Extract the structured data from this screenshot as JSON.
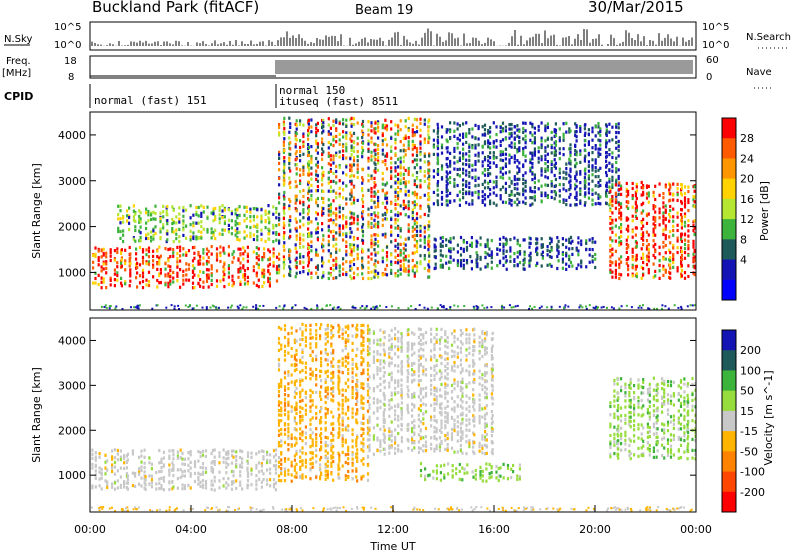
{
  "header": {
    "title": "Buckland Park (fitACF)",
    "beam": "Beam 19",
    "date": "30/Mar/2015"
  },
  "top_panels": {
    "nsky_label": "N.Sky",
    "nsearch_label": "N.Search",
    "nsky_ticks": [
      "10^5",
      "10^0"
    ],
    "nsearch_ticks": [
      "10^5",
      "10^0"
    ],
    "freq_label": "Freq.",
    "freq_unit": "[MHz]",
    "freq_ticks": [
      "18",
      "8"
    ],
    "nave_label": "Nave",
    "nave_ticks": [
      "60",
      "0"
    ],
    "cpid_label": "CPID",
    "cpid_entries": [
      "normal (fast) 151",
      "normal 150",
      "ituseq (fast) 8511"
    ]
  },
  "chart_data": [
    {
      "type": "heatmap",
      "panel": "power",
      "ylabel": "Slant Range [km]",
      "xlabel": "",
      "yticks": [
        1000,
        2000,
        3000,
        4000
      ],
      "ylim": [
        180,
        4500
      ],
      "xlim_hours": [
        0,
        24
      ],
      "colorbar": {
        "label": "Power [dB]",
        "ticks": [
          "28",
          "24",
          "20",
          "16",
          "12",
          "8",
          "4"
        ],
        "colors": [
          "#ff0000",
          "#ff5a00",
          "#ff9600",
          "#ffd200",
          "#b4e632",
          "#3cb43c",
          "#1e5a5a",
          "#1414b4",
          "#0000ff"
        ]
      },
      "regions": [
        {
          "t0": 0.0,
          "t1": 7.4,
          "r0": 700,
          "r1": 1600,
          "level": "high"
        },
        {
          "t0": 1.0,
          "t1": 7.4,
          "r0": 1700,
          "r1": 2500,
          "level": "mid"
        },
        {
          "t0": 7.4,
          "t1": 13.5,
          "r0": 900,
          "r1": 4400,
          "level": "mixed"
        },
        {
          "t0": 13.5,
          "t1": 20.0,
          "r0": 1100,
          "r1": 1800,
          "level": "low"
        },
        {
          "t0": 13.5,
          "t1": 21.0,
          "r0": 2500,
          "r1": 4300,
          "level": "low"
        },
        {
          "t0": 20.5,
          "t1": 24.0,
          "r0": 900,
          "r1": 3000,
          "level": "high"
        }
      ]
    },
    {
      "type": "heatmap",
      "panel": "velocity",
      "ylabel": "Slant Range [km]",
      "xlabel": "Time UT",
      "yticks": [
        1000,
        2000,
        3000,
        4000
      ],
      "ylim": [
        180,
        4500
      ],
      "xticks": [
        "00:00",
        "04:00",
        "08:00",
        "12:00",
        "16:00",
        "20:00",
        "00:00"
      ],
      "xlim_hours": [
        0,
        24
      ],
      "colorbar": {
        "label": "Velocity [m s^-1]",
        "ticks": [
          "200",
          "100",
          "50",
          "15",
          "-15",
          "-50",
          "-100",
          "-200"
        ],
        "colors": [
          "#1414b4",
          "#1e5a5a",
          "#3cb43c",
          "#96dc3c",
          "#c8c8c8",
          "#ffb400",
          "#ff8200",
          "#ff4600",
          "#ff0000"
        ]
      },
      "regions": [
        {
          "t0": 0.0,
          "t1": 7.4,
          "r0": 700,
          "r1": 1600,
          "level": "zero"
        },
        {
          "t0": 7.4,
          "t1": 11.0,
          "r0": 900,
          "r1": 4400,
          "level": "negative"
        },
        {
          "t0": 11.0,
          "t1": 16.0,
          "r0": 1500,
          "r1": 4300,
          "level": "zero"
        },
        {
          "t0": 13.0,
          "t1": 17.0,
          "r0": 900,
          "r1": 1300,
          "level": "positive"
        },
        {
          "t0": 20.5,
          "t1": 24.0,
          "r0": 1400,
          "r1": 3200,
          "level": "mixed"
        }
      ]
    }
  ],
  "colors": {
    "background": "#ffffff",
    "axis": "#000000"
  }
}
